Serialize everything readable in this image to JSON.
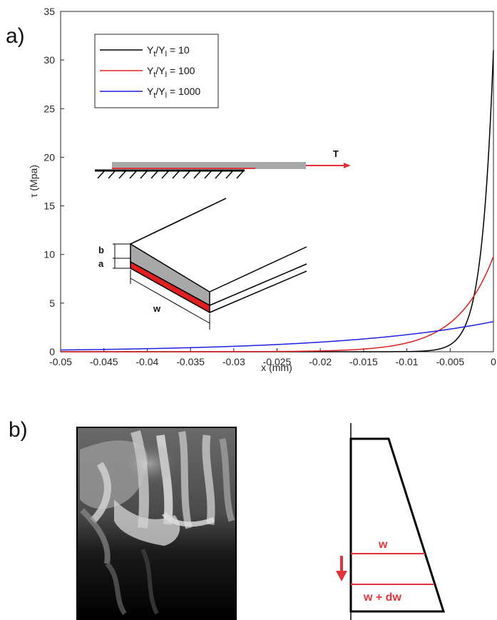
{
  "panel_a": {
    "label": "a)"
  },
  "panel_b": {
    "label": "b)"
  },
  "chart_data": {
    "type": "line",
    "title": "",
    "xlabel": "x (mm)",
    "ylabel": "τ (Mpa)",
    "xlim": [
      -0.05,
      0
    ],
    "ylim": [
      0,
      35
    ],
    "xticks": [
      "-0.05",
      "-0.045",
      "-0.04",
      "-0.035",
      "-0.03",
      "-0.025",
      "-0.02",
      "-0.015",
      "-0.01",
      "-0.005",
      "0"
    ],
    "yticks": [
      "0",
      "5",
      "10",
      "15",
      "20",
      "25",
      "30",
      "35"
    ],
    "grid": false,
    "legend_position": "top-left",
    "series": [
      {
        "name_main": "Y",
        "name_sub1": "t",
        "name_mid": "/Y",
        "name_sub2": "l",
        "name_tail": " = 10",
        "color": "#000000",
        "peak": 31.0,
        "decay_length": 0.00133
      },
      {
        "name_main": "Y",
        "name_sub1": "t",
        "name_mid": "/Y",
        "name_sub2": "l",
        "name_tail": " = 100",
        "color": "#e02020",
        "peak": 9.8,
        "decay_length": 0.0042
      },
      {
        "name_main": "Y",
        "name_sub1": "t",
        "name_mid": "/Y",
        "name_sub2": "l",
        "name_tail": " = 1000",
        "color": "#1f1fe0",
        "peak": 3.1,
        "decay_length": 0.0175
      }
    ]
  },
  "inset_schematic": {
    "force_label": "T",
    "dim_b": "b",
    "dim_a": "a",
    "dim_w": "w"
  },
  "taper_diagram": {
    "upper_label": "w",
    "lower_label": "w + dw"
  },
  "colors": {
    "accent_red": "#e2343b",
    "gray_layer": "#a8a8a8"
  }
}
